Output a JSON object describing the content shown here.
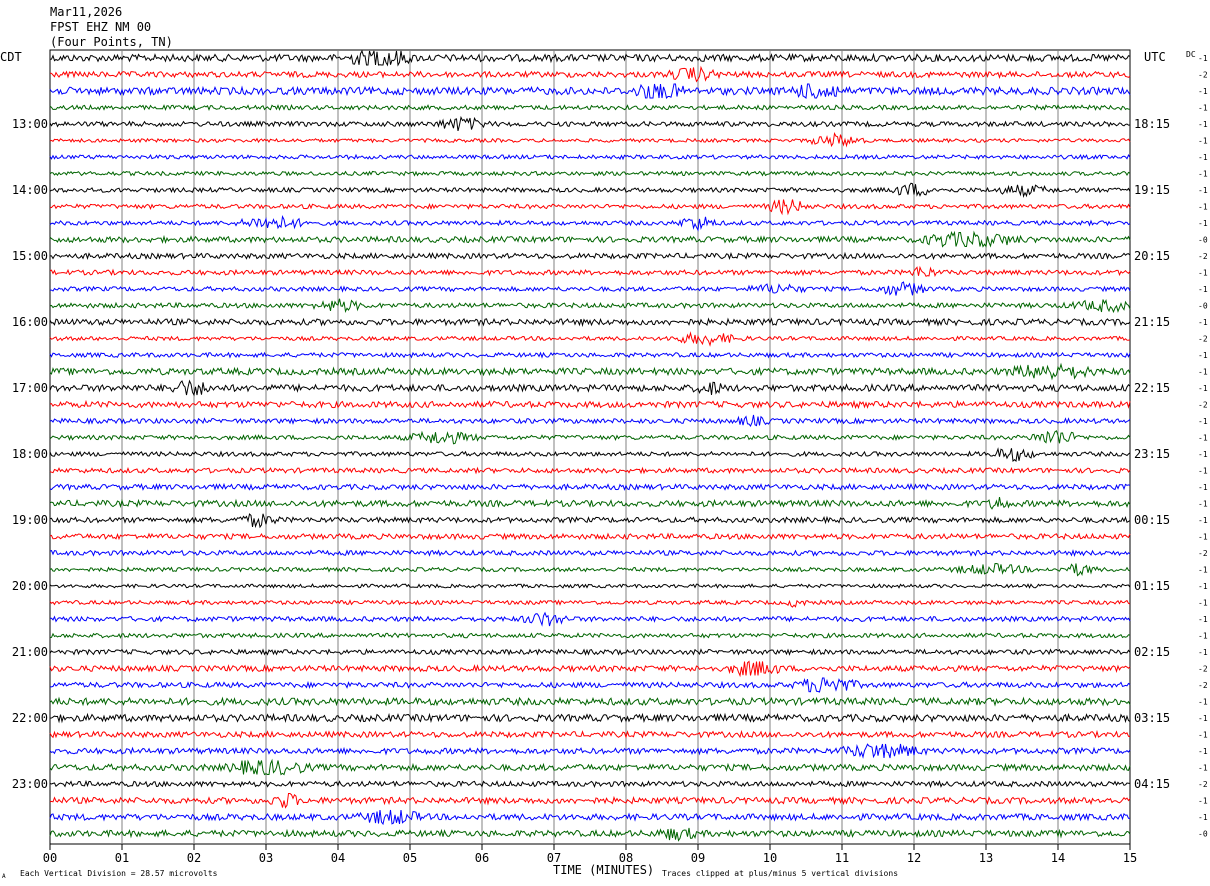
{
  "header": {
    "date": "Mar11,2026",
    "station": "FPST EHZ NM 00",
    "location": "(Four Points, TN)"
  },
  "left_tz": "CDT",
  "right_tz": "UTC",
  "dc_label": "DC",
  "footer": {
    "scale_note": "Each Vertical Division =   28.57 microvolts",
    "clip_note": "Traces clipped at plus/minus 5 vertical divisions",
    "corner_mark": "A"
  },
  "colors": {
    "trace_cycle": [
      "#000000",
      "#ff0000",
      "#0000ff",
      "#006400"
    ],
    "grid": "#808080"
  },
  "chart_data": {
    "type": "line",
    "description_of_series": "helicorder seismogram traces, 15 minutes per line",
    "xlabel": "TIME (MINUTES)",
    "x_ticks": [
      "00",
      "01",
      "02",
      "03",
      "04",
      "05",
      "06",
      "07",
      "08",
      "09",
      "10",
      "11",
      "12",
      "13",
      "14",
      "15"
    ],
    "xlim": [
      0,
      15
    ],
    "rows_total": 48,
    "left_hour_labels": [
      "13:00",
      "14:00",
      "15:00",
      "16:00",
      "17:00",
      "18:00",
      "19:00",
      "20:00",
      "21:00",
      "22:00",
      "23:00"
    ],
    "right_hour_labels": [
      "18:15",
      "19:15",
      "20:15",
      "21:15",
      "22:15",
      "23:15",
      "00:15",
      "01:15",
      "02:15",
      "03:15",
      "04:15"
    ],
    "hour_label_first_row": 4,
    "rows_per_hour": 4,
    "dc_offsets": [
      "-1",
      "-2",
      "-1",
      "-1",
      "-1",
      "-1",
      "-1",
      "-1",
      "-1",
      "-1",
      "-1",
      "-0",
      "-2",
      "-1",
      "-1",
      "-0",
      "-1",
      "-2",
      "-1",
      "-1",
      "-1",
      "-2",
      "-1",
      "-1",
      "-1",
      "-1",
      "-1",
      "-1",
      "-1",
      "-1",
      "-2",
      "-1",
      "-1",
      "-1",
      "-1",
      "-1",
      "-1",
      "-2",
      "-2",
      "-1",
      "-1",
      "-1",
      "-1",
      "-1",
      "-2",
      "-1",
      "-1",
      "-0"
    ],
    "trace_amplitude_profile": [
      1.6,
      1.3,
      1.7,
      1.0,
      1.1,
      0.8,
      0.9,
      0.9,
      1.0,
      1.0,
      1.0,
      1.3,
      1.2,
      1.1,
      1.0,
      1.1,
      1.4,
      0.9,
      1.0,
      1.5,
      1.5,
      1.4,
      1.1,
      1.0,
      1.0,
      1.1,
      1.2,
      1.4,
      1.2,
      1.2,
      1.1,
      0.9,
      0.8,
      0.9,
      1.1,
      1.0,
      1.1,
      1.3,
      1.2,
      1.6,
      1.6,
      1.3,
      1.3,
      1.4,
      1.2,
      1.4,
      1.4,
      1.4
    ]
  }
}
